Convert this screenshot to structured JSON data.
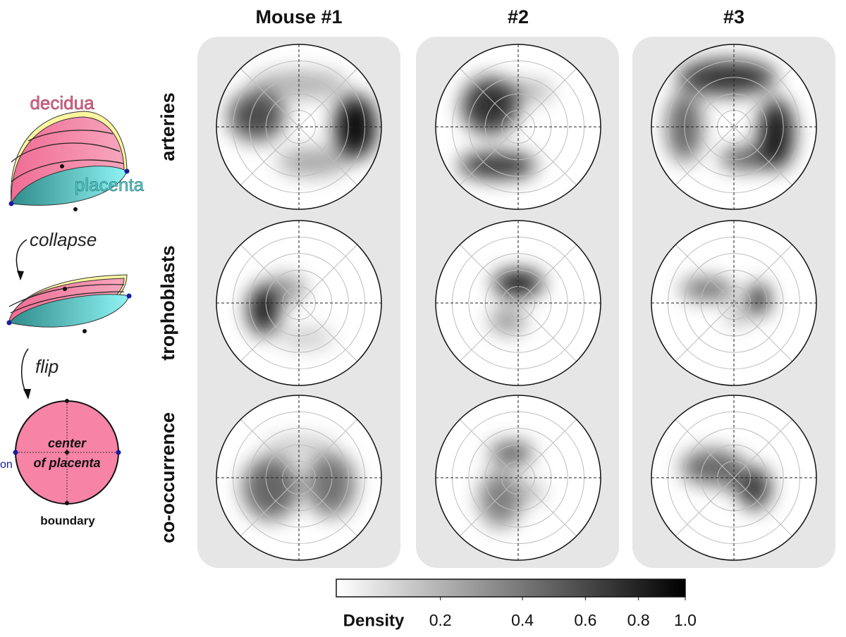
{
  "figure": {
    "column_titles": [
      "Mouse #1",
      "#2",
      "#3"
    ],
    "row_labels": [
      "arteries",
      "trophoblasts",
      "co-occurrence"
    ]
  },
  "schematic": {
    "decidua": "decidua",
    "placenta": "placenta",
    "collapse": "collapse",
    "flip": "flip",
    "center_label": [
      "center",
      "of placenta"
    ],
    "side_label": "on",
    "boundary": "boundary"
  },
  "colorbar": {
    "label": "Density",
    "scale": "sqrt",
    "lim": [
      0.045,
      1
    ],
    "ticks": [
      0.2,
      0.4,
      0.6,
      0.8,
      {
        "value": 1,
        "label": "1.0"
      }
    ]
  }
}
